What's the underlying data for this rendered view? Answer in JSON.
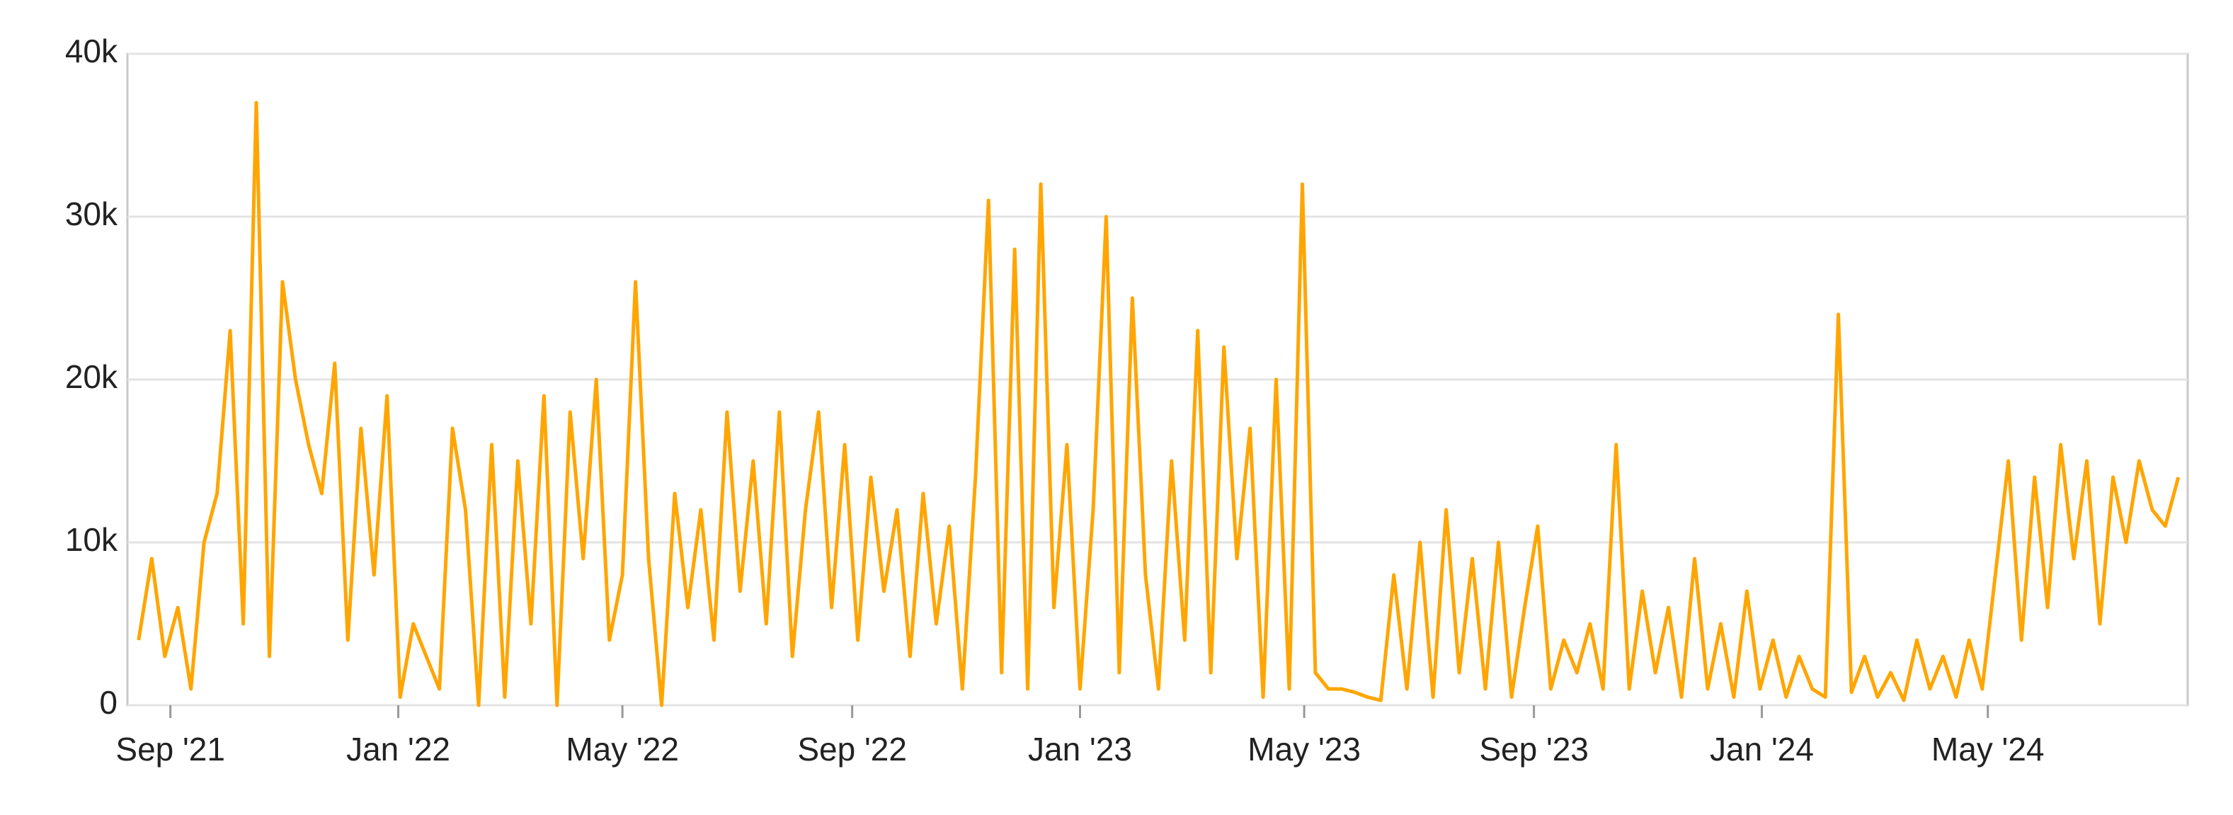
{
  "chart_data": {
    "type": "line",
    "color": "#ffa500",
    "grid": true,
    "xlim": [
      "2021-08-09",
      "2024-08-16"
    ],
    "ylim": [
      0,
      40000
    ],
    "yticks": [
      0,
      {
        "value": 10000,
        "label": "10k"
      },
      {
        "value": 20000,
        "label": "20k"
      },
      {
        "value": 30000,
        "label": "30k"
      },
      {
        "value": 40000,
        "label": "40k"
      }
    ],
    "xticks": [
      {
        "value": "2021-09-01",
        "label": "Sep '21"
      },
      {
        "value": "2022-01-01",
        "label": "Jan '22"
      },
      {
        "value": "2022-05-01",
        "label": "May '22"
      },
      {
        "value": "2022-09-01",
        "label": "Sep '22"
      },
      {
        "value": "2023-01-01",
        "label": "Jan '23"
      },
      {
        "value": "2023-05-01",
        "label": "May '23"
      },
      {
        "value": "2023-09-01",
        "label": "Sep '23"
      },
      {
        "value": "2024-01-01",
        "label": "Jan '24"
      },
      {
        "value": "2024-05-01",
        "label": "May '24"
      }
    ],
    "x": [
      "2021-08-15",
      "2021-08-22",
      "2021-08-29",
      "2021-09-05",
      "2021-09-12",
      "2021-09-19",
      "2021-09-26",
      "2021-10-03",
      "2021-10-10",
      "2021-10-17",
      "2021-10-24",
      "2021-10-31",
      "2021-11-07",
      "2021-11-14",
      "2021-11-21",
      "2021-11-28",
      "2021-12-05",
      "2021-12-12",
      "2021-12-19",
      "2021-12-26",
      "2022-01-02",
      "2022-01-09",
      "2022-01-16",
      "2022-01-23",
      "2022-01-30",
      "2022-02-06",
      "2022-02-13",
      "2022-02-20",
      "2022-02-27",
      "2022-03-06",
      "2022-03-13",
      "2022-03-20",
      "2022-03-27",
      "2022-04-03",
      "2022-04-10",
      "2022-04-17",
      "2022-04-24",
      "2022-05-01",
      "2022-05-08",
      "2022-05-15",
      "2022-05-22",
      "2022-05-29",
      "2022-06-05",
      "2022-06-12",
      "2022-06-19",
      "2022-06-26",
      "2022-07-03",
      "2022-07-10",
      "2022-07-17",
      "2022-07-24",
      "2022-07-31",
      "2022-08-07",
      "2022-08-14",
      "2022-08-21",
      "2022-08-28",
      "2022-09-04",
      "2022-09-11",
      "2022-09-18",
      "2022-09-25",
      "2022-10-02",
      "2022-10-09",
      "2022-10-16",
      "2022-10-23",
      "2022-10-30",
      "2022-11-06",
      "2022-11-13",
      "2022-11-20",
      "2022-11-27",
      "2022-12-04",
      "2022-12-11",
      "2022-12-18",
      "2022-12-25",
      "2023-01-01",
      "2023-01-08",
      "2023-01-15",
      "2023-01-22",
      "2023-01-29",
      "2023-02-05",
      "2023-02-12",
      "2023-02-19",
      "2023-02-26",
      "2023-03-05",
      "2023-03-12",
      "2023-03-19",
      "2023-03-26",
      "2023-04-02",
      "2023-04-09",
      "2023-04-16",
      "2023-04-23",
      "2023-04-30",
      "2023-05-07",
      "2023-05-14",
      "2023-05-21",
      "2023-05-28",
      "2023-06-04",
      "2023-06-11",
      "2023-06-18",
      "2023-06-25",
      "2023-07-02",
      "2023-07-09",
      "2023-07-16",
      "2023-07-23",
      "2023-07-30",
      "2023-08-06",
      "2023-08-13",
      "2023-08-20",
      "2023-08-27",
      "2023-09-03",
      "2023-09-10",
      "2023-09-17",
      "2023-09-24",
      "2023-10-01",
      "2023-10-08",
      "2023-10-15",
      "2023-10-22",
      "2023-10-29",
      "2023-11-05",
      "2023-11-12",
      "2023-11-19",
      "2023-11-26",
      "2023-12-03",
      "2023-12-10",
      "2023-12-17",
      "2023-12-24",
      "2023-12-31",
      "2024-01-07",
      "2024-01-14",
      "2024-01-21",
      "2024-01-28",
      "2024-02-04",
      "2024-02-11",
      "2024-02-18",
      "2024-02-25",
      "2024-03-03",
      "2024-03-10",
      "2024-03-17",
      "2024-03-24",
      "2024-03-31",
      "2024-04-07",
      "2024-04-14",
      "2024-04-21",
      "2024-04-28",
      "2024-05-05",
      "2024-05-12",
      "2024-05-19",
      "2024-05-26",
      "2024-06-02",
      "2024-06-09",
      "2024-06-16",
      "2024-06-23",
      "2024-06-30",
      "2024-07-07",
      "2024-07-14",
      "2024-07-21",
      "2024-07-28",
      "2024-08-04",
      "2024-08-11"
    ],
    "values": [
      4000,
      9000,
      3000,
      6000,
      1000,
      10000,
      13000,
      23000,
      5000,
      37000,
      3000,
      26000,
      20000,
      16000,
      13000,
      21000,
      4000,
      17000,
      8000,
      19000,
      500,
      5000,
      3000,
      1000,
      17000,
      12000,
      0,
      16000,
      500,
      15000,
      5000,
      19000,
      0,
      18000,
      9000,
      20000,
      4000,
      8000,
      26000,
      9000,
      0,
      13000,
      6000,
      12000,
      4000,
      18000,
      7000,
      15000,
      5000,
      18000,
      3000,
      12000,
      18000,
      6000,
      16000,
      4000,
      14000,
      7000,
      12000,
      3000,
      13000,
      5000,
      11000,
      1000,
      14000,
      31000,
      2000,
      28000,
      1000,
      32000,
      6000,
      16000,
      1000,
      12000,
      30000,
      2000,
      25000,
      8000,
      1000,
      15000,
      4000,
      23000,
      2000,
      22000,
      9000,
      17000,
      500,
      20000,
      1000,
      32000,
      2000,
      1000,
      1000,
      800,
      500,
      300,
      8000,
      1000,
      10000,
      500,
      12000,
      2000,
      9000,
      1000,
      10000,
      500,
      6000,
      11000,
      1000,
      4000,
      2000,
      5000,
      1000,
      16000,
      1000,
      7000,
      2000,
      6000,
      500,
      9000,
      1000,
      5000,
      500,
      7000,
      1000,
      4000,
      500,
      3000,
      1000,
      500,
      24000,
      800,
      3000,
      500,
      2000,
      300,
      4000,
      1000,
      3000,
      500,
      4000,
      1000,
      8000,
      15000,
      4000,
      14000,
      6000,
      16000,
      9000,
      15000,
      5000,
      14000,
      10000,
      15000,
      12000,
      11000,
      14000
    ]
  }
}
